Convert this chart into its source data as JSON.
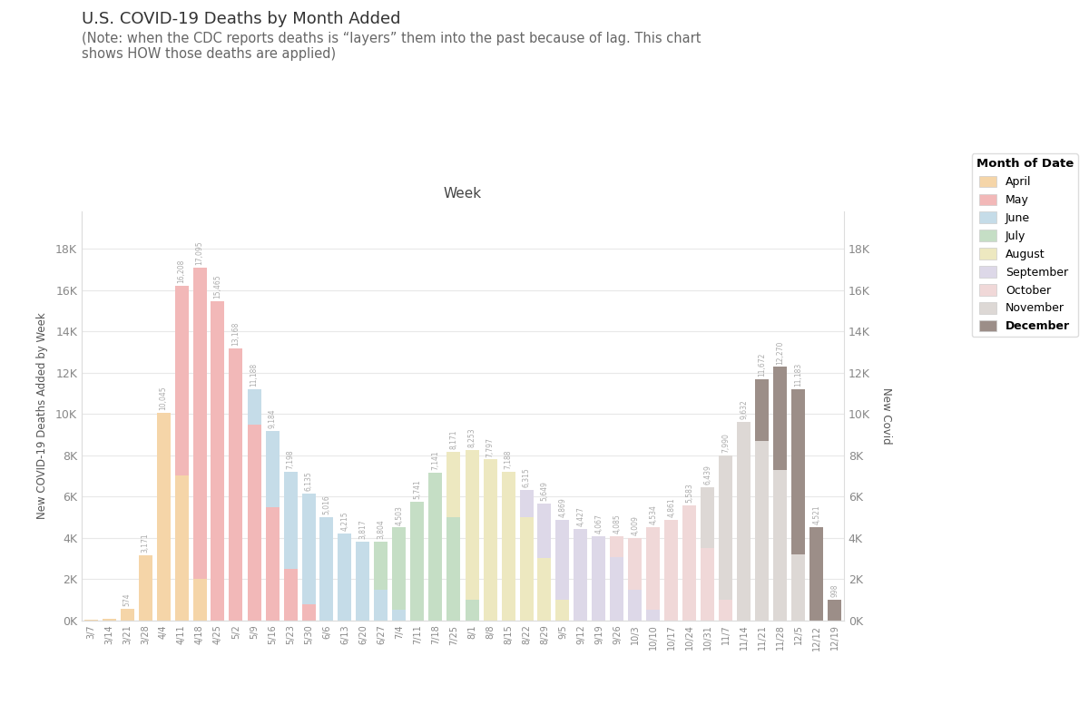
{
  "title_line1": "U.S. COVID-19 Deaths by Month Added",
  "title_line2": "(Note: when the CDC reports deaths is “layers” them into the past because of lag. This chart\nshows HOW those deaths are applied)",
  "xlabel": "Week",
  "ylabel_left": "New COVID-19 Deaths Added by Week",
  "ylabel_right": "New Covid",
  "weeks": [
    "3/7",
    "3/14",
    "3/21",
    "3/28",
    "4/4",
    "4/11",
    "4/18",
    "4/25",
    "5/2",
    "5/9",
    "5/16",
    "5/23",
    "5/30",
    "6/6",
    "6/13",
    "6/20",
    "6/27",
    "7/4",
    "7/11",
    "7/18",
    "7/25",
    "8/1",
    "8/8",
    "8/15",
    "8/22",
    "8/29",
    "9/5",
    "9/12",
    "9/19",
    "9/26",
    "10/3",
    "10/10",
    "10/17",
    "10/24",
    "10/31",
    "11/7",
    "11/14",
    "11/21",
    "11/28",
    "12/5",
    "12/12",
    "12/19"
  ],
  "month_colors": {
    "April": "#F5D5A8",
    "May": "#F2B8B8",
    "June": "#C5DCE8",
    "July": "#C5DEC5",
    "August": "#EDE8C0",
    "September": "#DDD8E8",
    "October": "#F0D8D8",
    "November": "#DDD8D5",
    "December": "#9C8E88"
  },
  "bar_data": [
    {
      "week": "3/7",
      "total": 36,
      "segments": {
        "April": 36
      }
    },
    {
      "week": "3/14",
      "total": 56,
      "segments": {
        "April": 56
      }
    },
    {
      "week": "3/21",
      "total": 574,
      "segments": {
        "April": 574
      }
    },
    {
      "week": "3/28",
      "total": 3171,
      "segments": {
        "April": 3171
      }
    },
    {
      "week": "4/4",
      "total": 10045,
      "segments": {
        "April": 10045
      }
    },
    {
      "week": "4/11",
      "total": 16208,
      "segments": {
        "April": 7000,
        "May": 9208
      }
    },
    {
      "week": "4/18",
      "total": 17095,
      "segments": {
        "April": 2000,
        "May": 15095
      }
    },
    {
      "week": "4/25",
      "total": 15465,
      "segments": {
        "May": 15465
      }
    },
    {
      "week": "5/2",
      "total": 13168,
      "segments": {
        "May": 13168
      }
    },
    {
      "week": "5/9",
      "total": 11188,
      "segments": {
        "May": 9500,
        "June": 1688
      }
    },
    {
      "week": "5/16",
      "total": 9184,
      "segments": {
        "May": 5500,
        "June": 3684
      }
    },
    {
      "week": "5/23",
      "total": 7198,
      "segments": {
        "May": 2500,
        "June": 4698
      }
    },
    {
      "week": "5/30",
      "total": 6135,
      "segments": {
        "May": 800,
        "June": 5335
      }
    },
    {
      "week": "6/6",
      "total": 5016,
      "segments": {
        "June": 5016
      }
    },
    {
      "week": "6/13",
      "total": 4215,
      "segments": {
        "June": 4215
      }
    },
    {
      "week": "6/20",
      "total": 3817,
      "segments": {
        "June": 3817
      }
    },
    {
      "week": "6/27",
      "total": 3804,
      "segments": {
        "June": 1500,
        "July": 2304
      }
    },
    {
      "week": "7/4",
      "total": 4503,
      "segments": {
        "June": 500,
        "July": 4003
      }
    },
    {
      "week": "7/11",
      "total": 5741,
      "segments": {
        "July": 5741
      }
    },
    {
      "week": "7/18",
      "total": 7141,
      "segments": {
        "July": 7141
      }
    },
    {
      "week": "7/25",
      "total": 8171,
      "segments": {
        "July": 5000,
        "August": 3171
      }
    },
    {
      "week": "8/1",
      "total": 8253,
      "segments": {
        "July": 1000,
        "August": 7253
      }
    },
    {
      "week": "8/8",
      "total": 7797,
      "segments": {
        "August": 7797
      }
    },
    {
      "week": "8/15",
      "total": 7188,
      "segments": {
        "August": 7188
      }
    },
    {
      "week": "8/22",
      "total": 6315,
      "segments": {
        "August": 5000,
        "September": 1315
      }
    },
    {
      "week": "8/29",
      "total": 5649,
      "segments": {
        "August": 3000,
        "September": 2649
      }
    },
    {
      "week": "9/5",
      "total": 4869,
      "segments": {
        "August": 1000,
        "September": 3869
      }
    },
    {
      "week": "9/12",
      "total": 4427,
      "segments": {
        "September": 4427
      }
    },
    {
      "week": "9/19",
      "total": 4067,
      "segments": {
        "September": 4067
      }
    },
    {
      "week": "9/26",
      "total": 4085,
      "segments": {
        "September": 3085,
        "October": 1000
      }
    },
    {
      "week": "10/3",
      "total": 4009,
      "segments": {
        "September": 1500,
        "October": 2509
      }
    },
    {
      "week": "10/10",
      "total": 4534,
      "segments": {
        "September": 500,
        "October": 4034
      }
    },
    {
      "week": "10/17",
      "total": 4861,
      "segments": {
        "October": 4861
      }
    },
    {
      "week": "10/24",
      "total": 5583,
      "segments": {
        "October": 5583
      }
    },
    {
      "week": "10/31",
      "total": 6439,
      "segments": {
        "October": 3500,
        "November": 2939
      }
    },
    {
      "week": "11/7",
      "total": 7990,
      "segments": {
        "October": 1000,
        "November": 6990
      }
    },
    {
      "week": "11/14",
      "total": 9632,
      "segments": {
        "November": 9632
      }
    },
    {
      "week": "11/21",
      "total": 11672,
      "segments": {
        "November": 8672,
        "December": 3000
      }
    },
    {
      "week": "11/28",
      "total": 12270,
      "segments": {
        "November": 7270,
        "December": 5000
      }
    },
    {
      "week": "12/5",
      "total": 11183,
      "segments": {
        "November": 3183,
        "December": 8000
      }
    },
    {
      "week": "12/12",
      "total": 4521,
      "segments": {
        "December": 4521
      }
    },
    {
      "week": "12/19",
      "total": 998,
      "segments": {
        "December": 998
      }
    }
  ],
  "yticks": [
    0,
    2000,
    4000,
    6000,
    8000,
    10000,
    12000,
    14000,
    16000,
    18000
  ],
  "ytick_labels": [
    "0K",
    "2K",
    "4K",
    "6K",
    "8K",
    "10K",
    "12K",
    "14K",
    "16K",
    "18K"
  ],
  "ylim": [
    0,
    19800
  ],
  "bg_color": "#FFFFFF",
  "plot_bg_color": "#FFFFFF",
  "grid_color": "#E8E8E8",
  "bar_width": 0.75,
  "annotation_color": "#AAAAAA"
}
